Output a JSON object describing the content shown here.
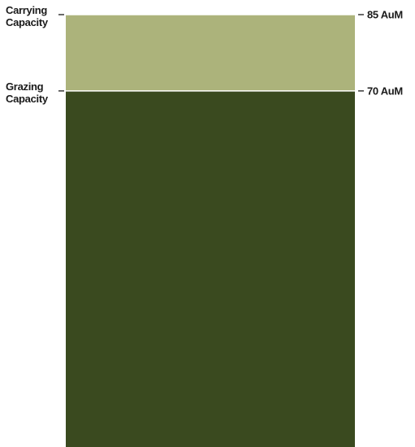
{
  "chart_data": {
    "type": "bar",
    "orientation": "vertical",
    "stacked": true,
    "title": "",
    "xlabel": "",
    "ylabel": "",
    "ylim": [
      0,
      85
    ],
    "grid": false,
    "segments": [
      {
        "from": 0,
        "to": 70,
        "color": "#3a4a1f"
      },
      {
        "from": 70,
        "to": 85,
        "color": "#acb37b"
      }
    ],
    "annotations": [
      {
        "value": 85,
        "left_label_lines": [
          "Carrying",
          "Capacity"
        ],
        "right_label": "85 AuM"
      },
      {
        "value": 70,
        "left_label_lines": [
          "Grazing",
          "Capacity"
        ],
        "right_label": "70 AuM"
      }
    ]
  }
}
